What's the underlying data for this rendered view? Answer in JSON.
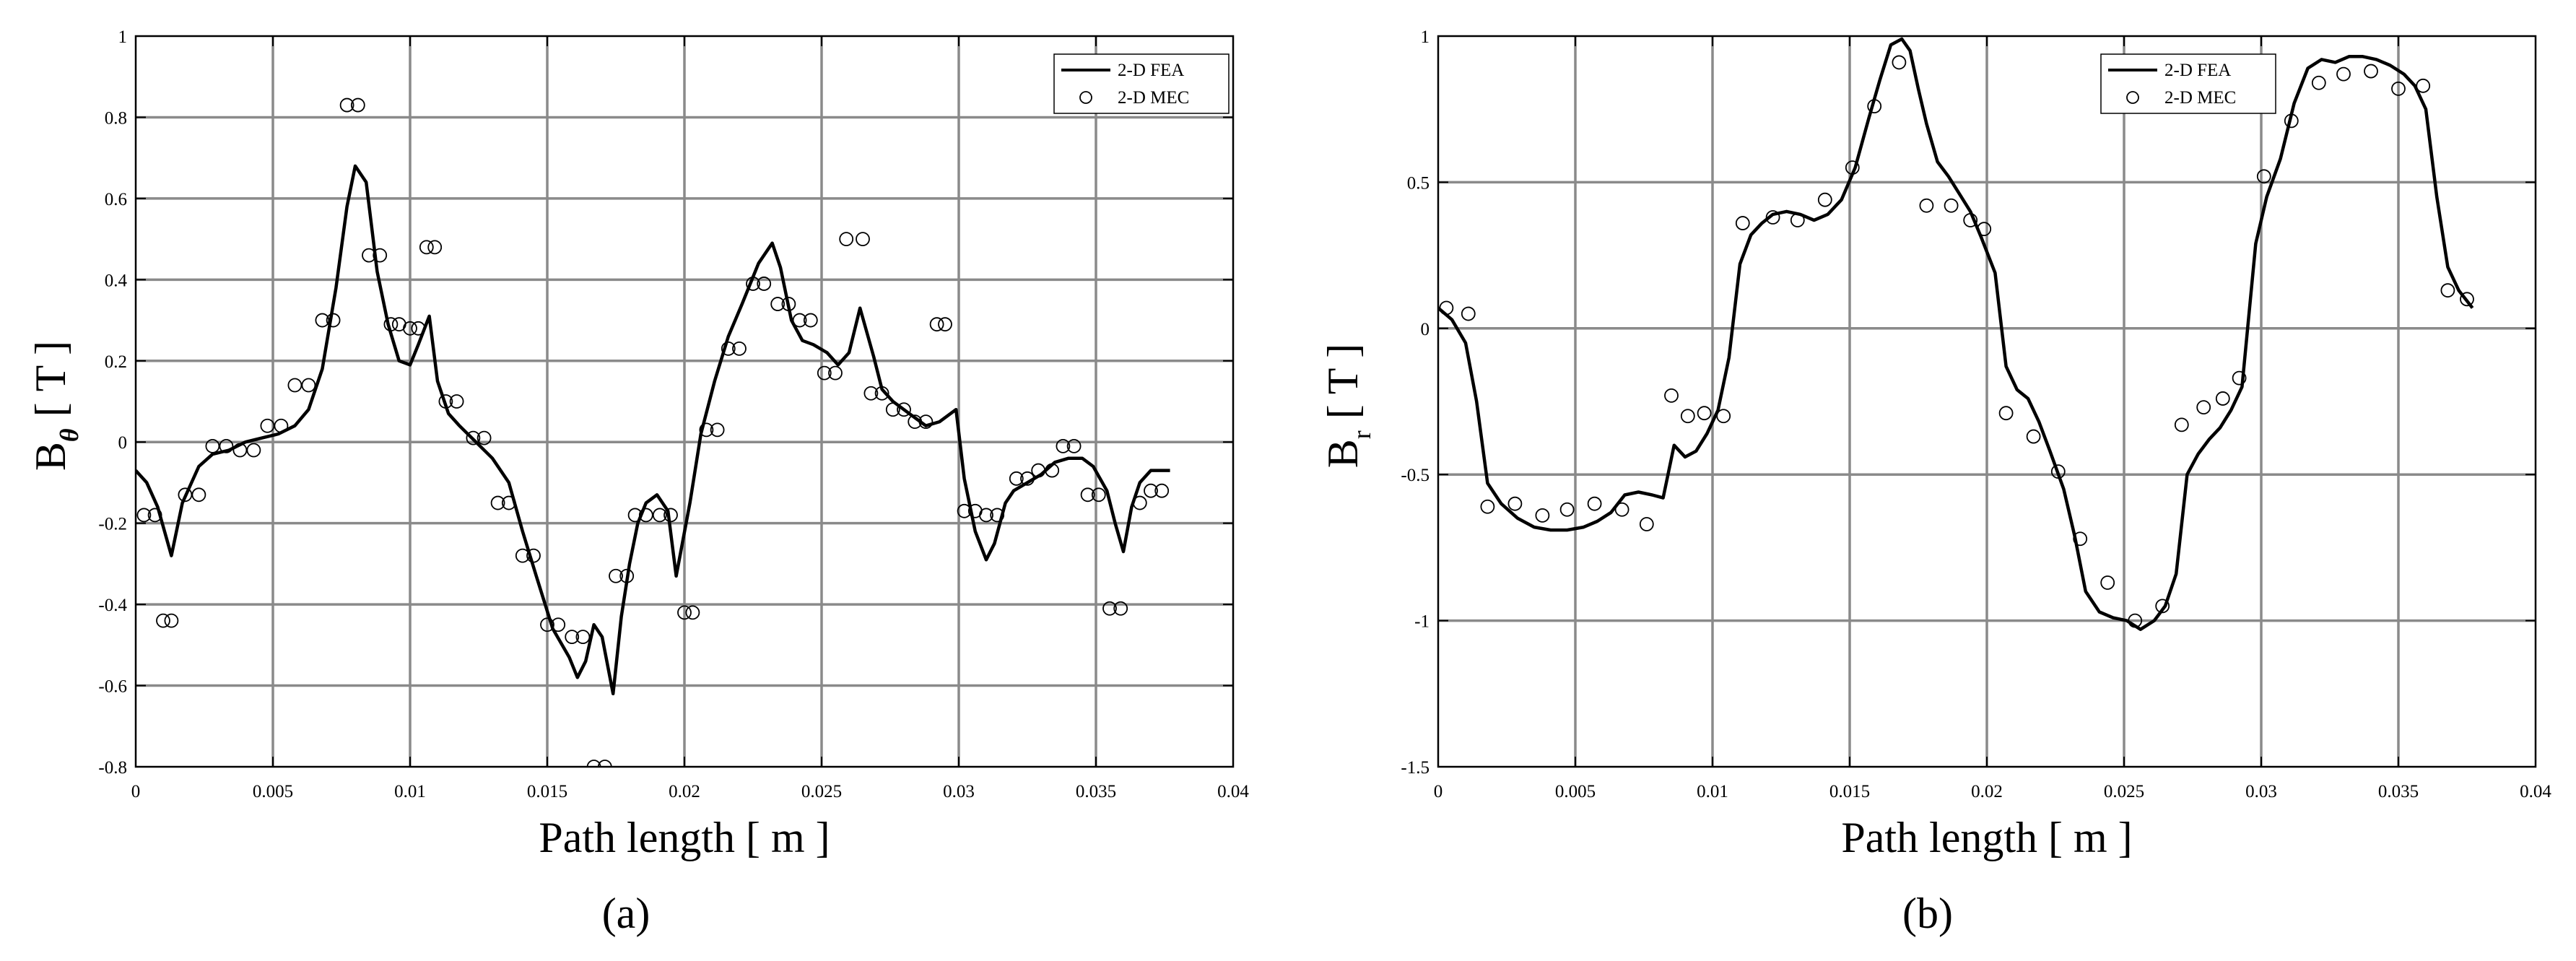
{
  "chart_data": [
    {
      "type": "line",
      "panel_label": "(a)",
      "xlabel": "Path length [ m ]",
      "ylabel_main": "B",
      "ylabel_sub": "θ",
      "ylabel_unit": "[ T ]",
      "xlim": [
        0,
        0.04
      ],
      "ylim": [
        -0.8,
        1
      ],
      "xticks": [
        0,
        0.005,
        0.01,
        0.015,
        0.02,
        0.025,
        0.03,
        0.035,
        0.04
      ],
      "xtick_labels": [
        "0",
        "0.005",
        "0.01",
        "0.015",
        "0.02",
        "0.025",
        "0.03",
        "0.035",
        "0.04"
      ],
      "yticks": [
        -0.8,
        -0.6,
        -0.4,
        -0.2,
        0,
        0.2,
        0.4,
        0.6,
        0.8,
        1
      ],
      "ytick_labels": [
        "-0.8",
        "-0.6",
        "-0.4",
        "-0.2",
        "0",
        "0.2",
        "0.4",
        "0.6",
        "0.8",
        "1"
      ],
      "grid": true,
      "legend_position": "top-right",
      "series": [
        {
          "name": "2-D FEA",
          "style": "line",
          "x": [
            0,
            0.0004,
            0.0008,
            0.0013,
            0.0017,
            0.0023,
            0.0028,
            0.0034,
            0.004,
            0.0046,
            0.0052,
            0.0058,
            0.0063,
            0.0068,
            0.0073,
            0.0077,
            0.008,
            0.0084,
            0.0088,
            0.0092,
            0.0096,
            0.01,
            0.0103,
            0.0107,
            0.011,
            0.0114,
            0.0118,
            0.0124,
            0.013,
            0.0136,
            0.0141,
            0.0146,
            0.0152,
            0.0158,
            0.0161,
            0.0164,
            0.0167,
            0.017,
            0.0174,
            0.0177,
            0.018,
            0.0183,
            0.0186,
            0.019,
            0.0194,
            0.0197,
            0.0202,
            0.0206,
            0.0211,
            0.0216,
            0.0221,
            0.0227,
            0.0232,
            0.0235,
            0.0239,
            0.0243,
            0.0247,
            0.0252,
            0.0256,
            0.026,
            0.0264,
            0.0269,
            0.0272,
            0.0276,
            0.0282,
            0.0288,
            0.0293,
            0.0299,
            0.0302,
            0.0306,
            0.031,
            0.0313,
            0.0317,
            0.032,
            0.0325,
            0.033,
            0.0335,
            0.034,
            0.0345,
            0.0349,
            0.0354,
            0.0357,
            0.036,
            0.0363,
            0.0366,
            0.037,
            0.0373,
            0.0377
          ],
          "y": [
            -0.07,
            -0.1,
            -0.16,
            -0.28,
            -0.15,
            -0.06,
            -0.03,
            -0.02,
            0,
            0.01,
            0.02,
            0.04,
            0.08,
            0.18,
            0.38,
            0.58,
            0.68,
            0.64,
            0.42,
            0.29,
            0.2,
            0.19,
            0.24,
            0.31,
            0.15,
            0.07,
            0.04,
            0,
            -0.04,
            -0.1,
            -0.22,
            -0.33,
            -0.46,
            -0.53,
            -0.58,
            -0.54,
            -0.45,
            -0.48,
            -0.62,
            -0.43,
            -0.3,
            -0.2,
            -0.15,
            -0.13,
            -0.17,
            -0.33,
            -0.15,
            0.02,
            0.15,
            0.26,
            0.34,
            0.44,
            0.49,
            0.43,
            0.3,
            0.25,
            0.24,
            0.22,
            0.19,
            0.22,
            0.33,
            0.21,
            0.13,
            0.1,
            0.07,
            0.04,
            0.05,
            0.08,
            -0.09,
            -0.22,
            -0.29,
            -0.25,
            -0.15,
            -0.12,
            -0.1,
            -0.08,
            -0.05,
            -0.04,
            -0.04,
            -0.06,
            -0.12,
            -0.2,
            -0.27,
            -0.16,
            -0.1,
            -0.07,
            -0.07,
            -0.07
          ]
        },
        {
          "name": "2-D MEC",
          "style": "markers",
          "x": [
            0.0003,
            0.0007,
            0.001,
            0.0013,
            0.0018,
            0.0023,
            0.0028,
            0.0033,
            0.0038,
            0.0043,
            0.0048,
            0.0053,
            0.0058,
            0.0063,
            0.0068,
            0.0072,
            0.0077,
            0.0081,
            0.0085,
            0.0089,
            0.0093,
            0.0096,
            0.01,
            0.0103,
            0.0106,
            0.0109,
            0.0113,
            0.0117,
            0.0123,
            0.0127,
            0.0132,
            0.0136,
            0.0141,
            0.0145,
            0.015,
            0.0154,
            0.0159,
            0.0163,
            0.0167,
            0.0171,
            0.0175,
            0.0179,
            0.0182,
            0.0186,
            0.0191,
            0.0195,
            0.02,
            0.0203,
            0.0208,
            0.0212,
            0.0216,
            0.022,
            0.0225,
            0.0229,
            0.0234,
            0.0238,
            0.0242,
            0.0246,
            0.0251,
            0.0255,
            0.0259,
            0.0265,
            0.0268,
            0.0272,
            0.0276,
            0.028,
            0.0284,
            0.0288,
            0.0292,
            0.0295,
            0.0302,
            0.0306,
            0.031,
            0.0314,
            0.0321,
            0.0325,
            0.0329,
            0.0334,
            0.0338,
            0.0342,
            0.0347,
            0.0351,
            0.0355,
            0.0359,
            0.0366,
            0.037,
            0.0374
          ],
          "y": [
            -0.18,
            -0.18,
            -0.44,
            -0.44,
            -0.13,
            -0.13,
            -0.01,
            -0.01,
            -0.02,
            -0.02,
            0.04,
            0.04,
            0.14,
            0.14,
            0.3,
            0.3,
            0.83,
            0.83,
            0.46,
            0.46,
            0.29,
            0.29,
            0.28,
            0.28,
            0.48,
            0.48,
            0.1,
            0.1,
            0.01,
            0.01,
            -0.15,
            -0.15,
            -0.28,
            -0.28,
            -0.45,
            -0.45,
            -0.48,
            -0.48,
            -0.8,
            -0.8,
            -0.33,
            -0.33,
            -0.18,
            -0.18,
            -0.18,
            -0.18,
            -0.42,
            -0.42,
            0.03,
            0.03,
            0.23,
            0.23,
            0.39,
            0.39,
            0.34,
            0.34,
            0.3,
            0.3,
            0.17,
            0.17,
            0.5,
            0.5,
            0.12,
            0.12,
            0.08,
            0.08,
            0.05,
            0.05,
            0.29,
            0.29,
            -0.17,
            -0.17,
            -0.18,
            -0.18,
            -0.09,
            -0.09,
            -0.07,
            -0.07,
            -0.01,
            -0.01,
            -0.13,
            -0.13,
            -0.41,
            -0.41,
            -0.15,
            -0.12,
            -0.12
          ]
        }
      ]
    },
    {
      "type": "line",
      "panel_label": "(b)",
      "xlabel": "Path length [ m ]",
      "ylabel_main": "B",
      "ylabel_sub": "r",
      "ylabel_unit": "[ T ]",
      "xlim": [
        0,
        0.04
      ],
      "ylim": [
        -1.5,
        1
      ],
      "xticks": [
        0,
        0.005,
        0.01,
        0.015,
        0.02,
        0.025,
        0.03,
        0.035,
        0.04
      ],
      "xtick_labels": [
        "0",
        "0.005",
        "0.01",
        "0.015",
        "0.02",
        "0.025",
        "0.03",
        "0.035",
        "0.04"
      ],
      "yticks": [
        -1.5,
        -1,
        -0.5,
        0,
        0.5,
        1
      ],
      "ytick_labels": [
        "-1.5",
        "-1",
        "-0.5",
        "0",
        "0.5",
        "1"
      ],
      "grid": true,
      "legend_position": "top-right",
      "series": [
        {
          "name": "2-D FEA",
          "style": "line",
          "x": [
            0,
            0.0005,
            0.001,
            0.0014,
            0.0018,
            0.0023,
            0.0029,
            0.0035,
            0.0041,
            0.0047,
            0.0053,
            0.0058,
            0.0063,
            0.0068,
            0.0073,
            0.0078,
            0.0082,
            0.0086,
            0.009,
            0.0094,
            0.0098,
            0.0102,
            0.0106,
            0.011,
            0.0114,
            0.0118,
            0.0122,
            0.0127,
            0.0132,
            0.0137,
            0.0142,
            0.0147,
            0.0152,
            0.0157,
            0.0161,
            0.0165,
            0.0169,
            0.0172,
            0.0175,
            0.0178,
            0.0182,
            0.0186,
            0.019,
            0.0194,
            0.0198,
            0.0203,
            0.0207,
            0.0211,
            0.0215,
            0.0219,
            0.0223,
            0.0228,
            0.0232,
            0.0236,
            0.0241,
            0.0246,
            0.0251,
            0.0256,
            0.0261,
            0.0265,
            0.0269,
            0.0273,
            0.0277,
            0.0281,
            0.0285,
            0.0289,
            0.0293,
            0.0298,
            0.0302,
            0.0307,
            0.0312,
            0.0317,
            0.0322,
            0.0327,
            0.0332,
            0.0337,
            0.0342,
            0.0347,
            0.0352,
            0.0356,
            0.036,
            0.0364,
            0.0368,
            0.0372,
            0.0377
          ],
          "y": [
            0.07,
            0.03,
            -0.05,
            -0.25,
            -0.53,
            -0.6,
            -0.65,
            -0.68,
            -0.69,
            -0.69,
            -0.68,
            -0.66,
            -0.63,
            -0.57,
            -0.56,
            -0.57,
            -0.58,
            -0.4,
            -0.44,
            -0.42,
            -0.36,
            -0.28,
            -0.1,
            0.22,
            0.32,
            0.36,
            0.39,
            0.4,
            0.39,
            0.37,
            0.39,
            0.44,
            0.55,
            0.72,
            0.85,
            0.97,
            0.99,
            0.95,
            0.82,
            0.7,
            0.57,
            0.52,
            0.46,
            0.4,
            0.31,
            0.19,
            -0.13,
            -0.21,
            -0.24,
            -0.32,
            -0.42,
            -0.55,
            -0.71,
            -0.9,
            -0.97,
            -0.99,
            -1.0,
            -1.03,
            -1.0,
            -0.95,
            -0.84,
            -0.5,
            -0.43,
            -0.38,
            -0.34,
            -0.28,
            -0.2,
            0.29,
            0.45,
            0.58,
            0.77,
            0.89,
            0.92,
            0.91,
            0.93,
            0.93,
            0.92,
            0.9,
            0.87,
            0.83,
            0.75,
            0.45,
            0.21,
            0.13,
            0.07
          ]
        },
        {
          "name": "2-D MEC",
          "style": "markers",
          "x": [
            0.0003,
            0.0011,
            0.0018,
            0.0028,
            0.0038,
            0.0047,
            0.0057,
            0.0067,
            0.0076,
            0.0085,
            0.0091,
            0.0097,
            0.0104,
            0.0111,
            0.0122,
            0.0131,
            0.0141,
            0.0151,
            0.0159,
            0.0168,
            0.0178,
            0.0187,
            0.0194,
            0.0199,
            0.0207,
            0.0217,
            0.0226,
            0.0234,
            0.0244,
            0.0254,
            0.0264,
            0.0271,
            0.0279,
            0.0286,
            0.0292,
            0.0301,
            0.0311,
            0.0321,
            0.033,
            0.034,
            0.035,
            0.0359,
            0.0368,
            0.0375
          ],
          "y": [
            0.07,
            0.05,
            -0.61,
            -0.6,
            -0.64,
            -0.62,
            -0.6,
            -0.62,
            -0.67,
            -0.23,
            -0.3,
            -0.29,
            -0.3,
            0.36,
            0.38,
            0.37,
            0.44,
            0.55,
            0.76,
            0.91,
            0.42,
            0.42,
            0.37,
            0.34,
            -0.29,
            -0.37,
            -0.49,
            -0.72,
            -0.87,
            -1.0,
            -0.95,
            -0.33,
            -0.27,
            -0.24,
            -0.17,
            0.52,
            0.71,
            0.84,
            0.87,
            0.88,
            0.82,
            0.83,
            0.13,
            0.1
          ]
        }
      ]
    }
  ]
}
